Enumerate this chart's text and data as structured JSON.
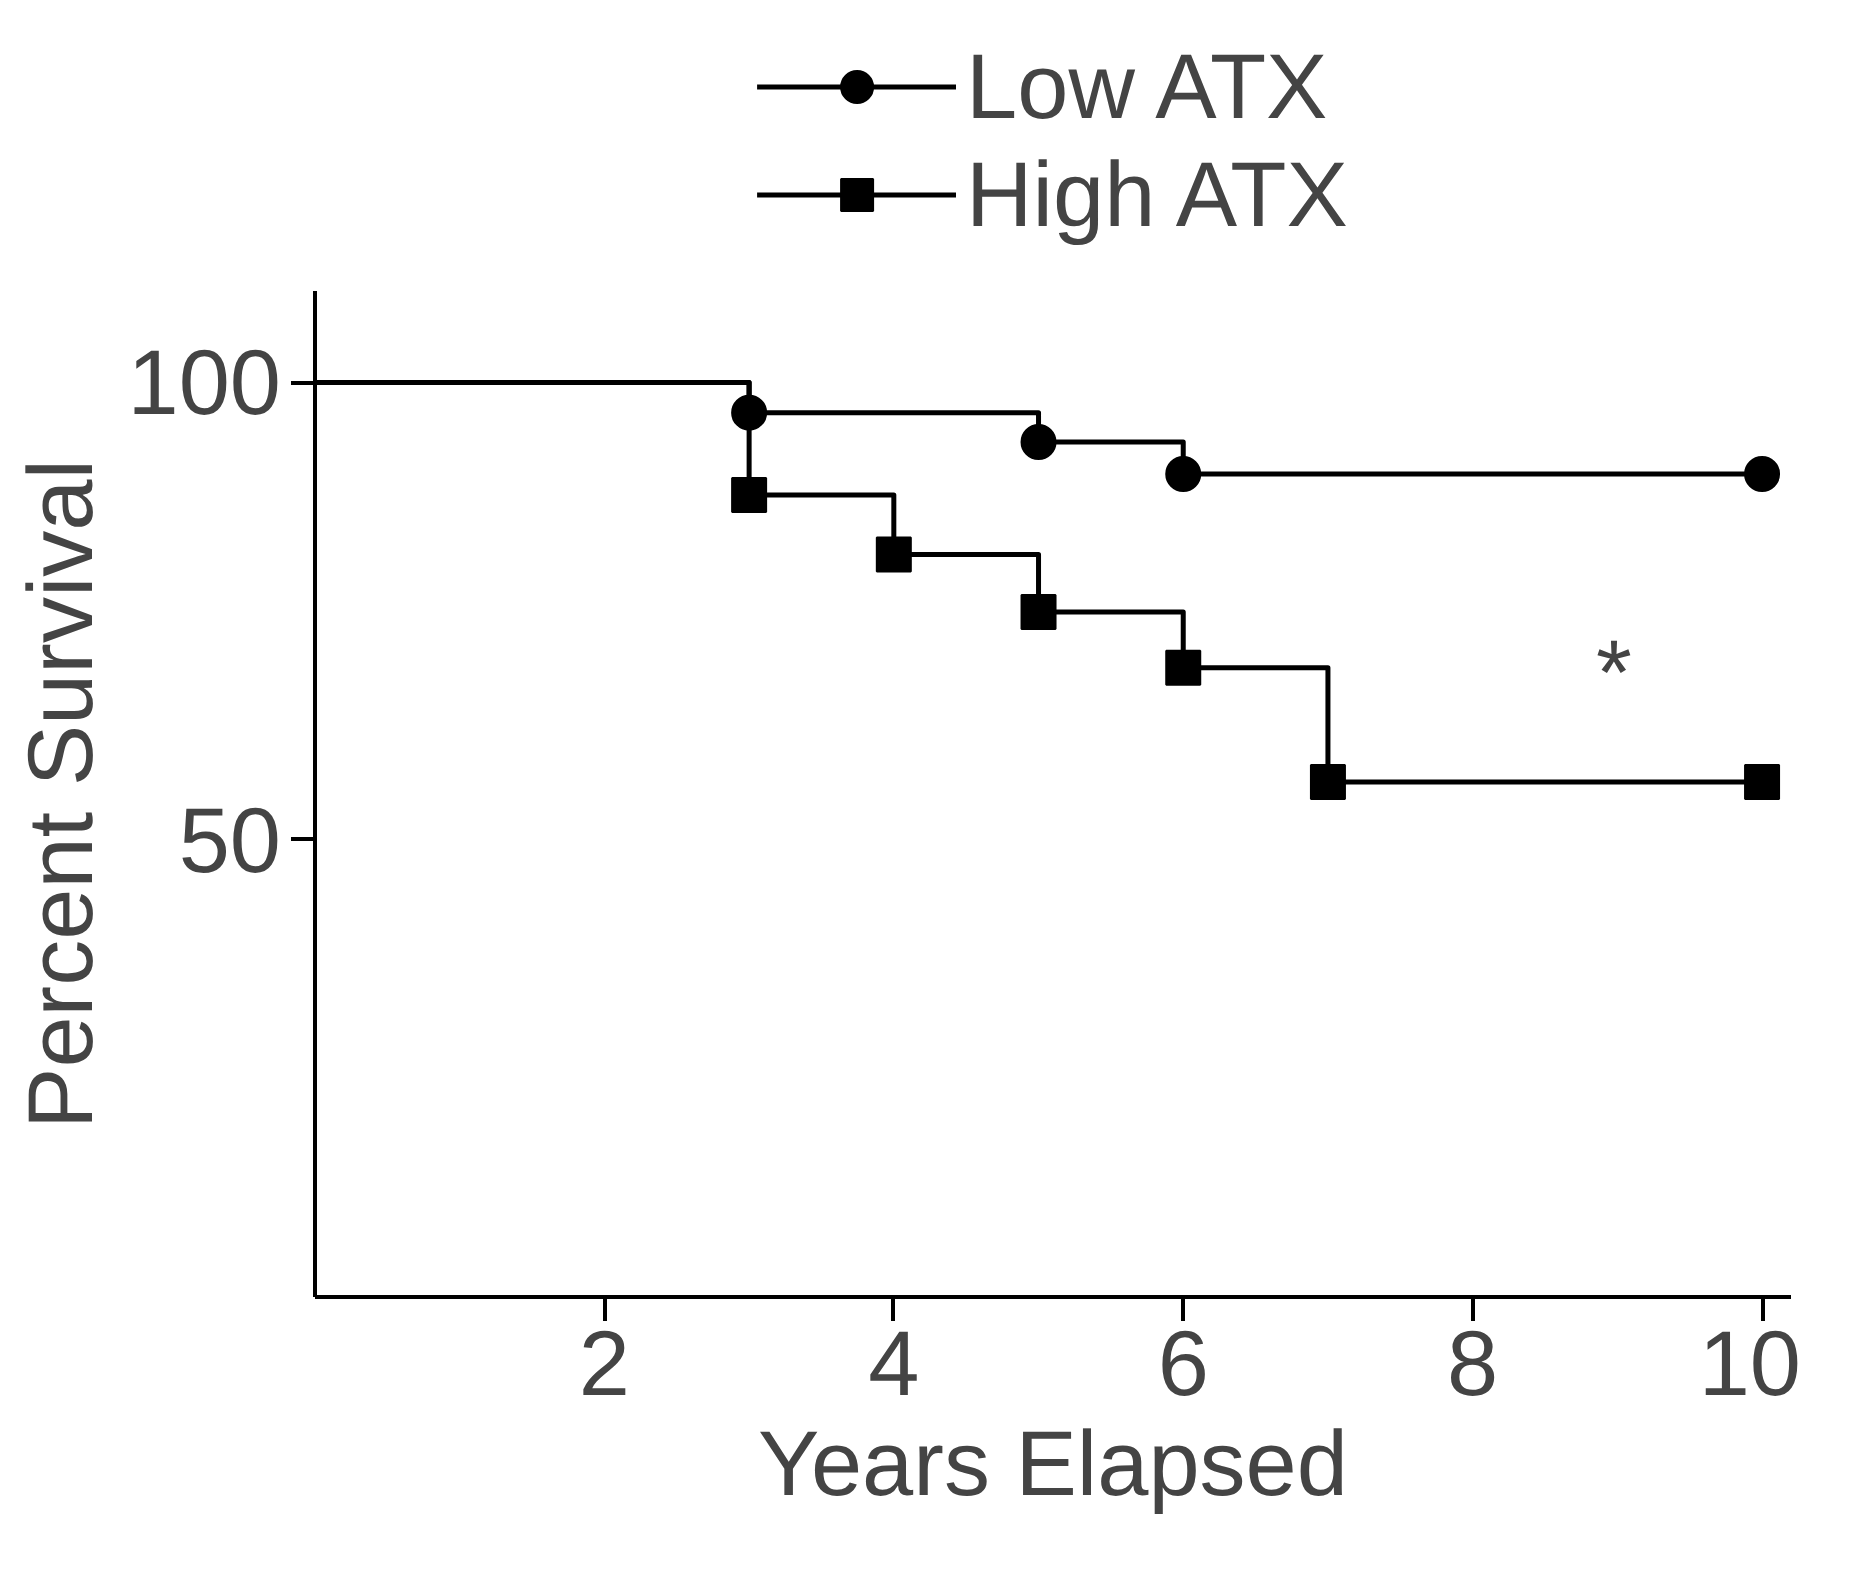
{
  "chart_data": {
    "type": "step",
    "xlabel": "Years Elapsed",
    "ylabel": "Percent Survival",
    "xlim": [
      0,
      10.2
    ],
    "ylim": [
      0,
      110
    ],
    "xticks": [
      2,
      4,
      6,
      8,
      10
    ],
    "yticks": [
      50,
      100
    ],
    "grid": false,
    "legend": "top",
    "line_style": "solid",
    "series": [
      {
        "name": "Low ATX",
        "color": "#000000",
        "marker": "circle",
        "x": [
          0,
          3,
          5,
          6,
          10
        ],
        "values": [
          100,
          96.7,
          93.5,
          90,
          90
        ]
      },
      {
        "name": "High ATX",
        "color": "#000000",
        "marker": "square",
        "x": [
          0,
          3,
          4,
          5,
          6,
          7,
          10
        ],
        "values": [
          100,
          87.7,
          81.2,
          74.9,
          68.8,
          56.3,
          56.3
        ]
      }
    ],
    "annotations": [
      "*"
    ]
  }
}
